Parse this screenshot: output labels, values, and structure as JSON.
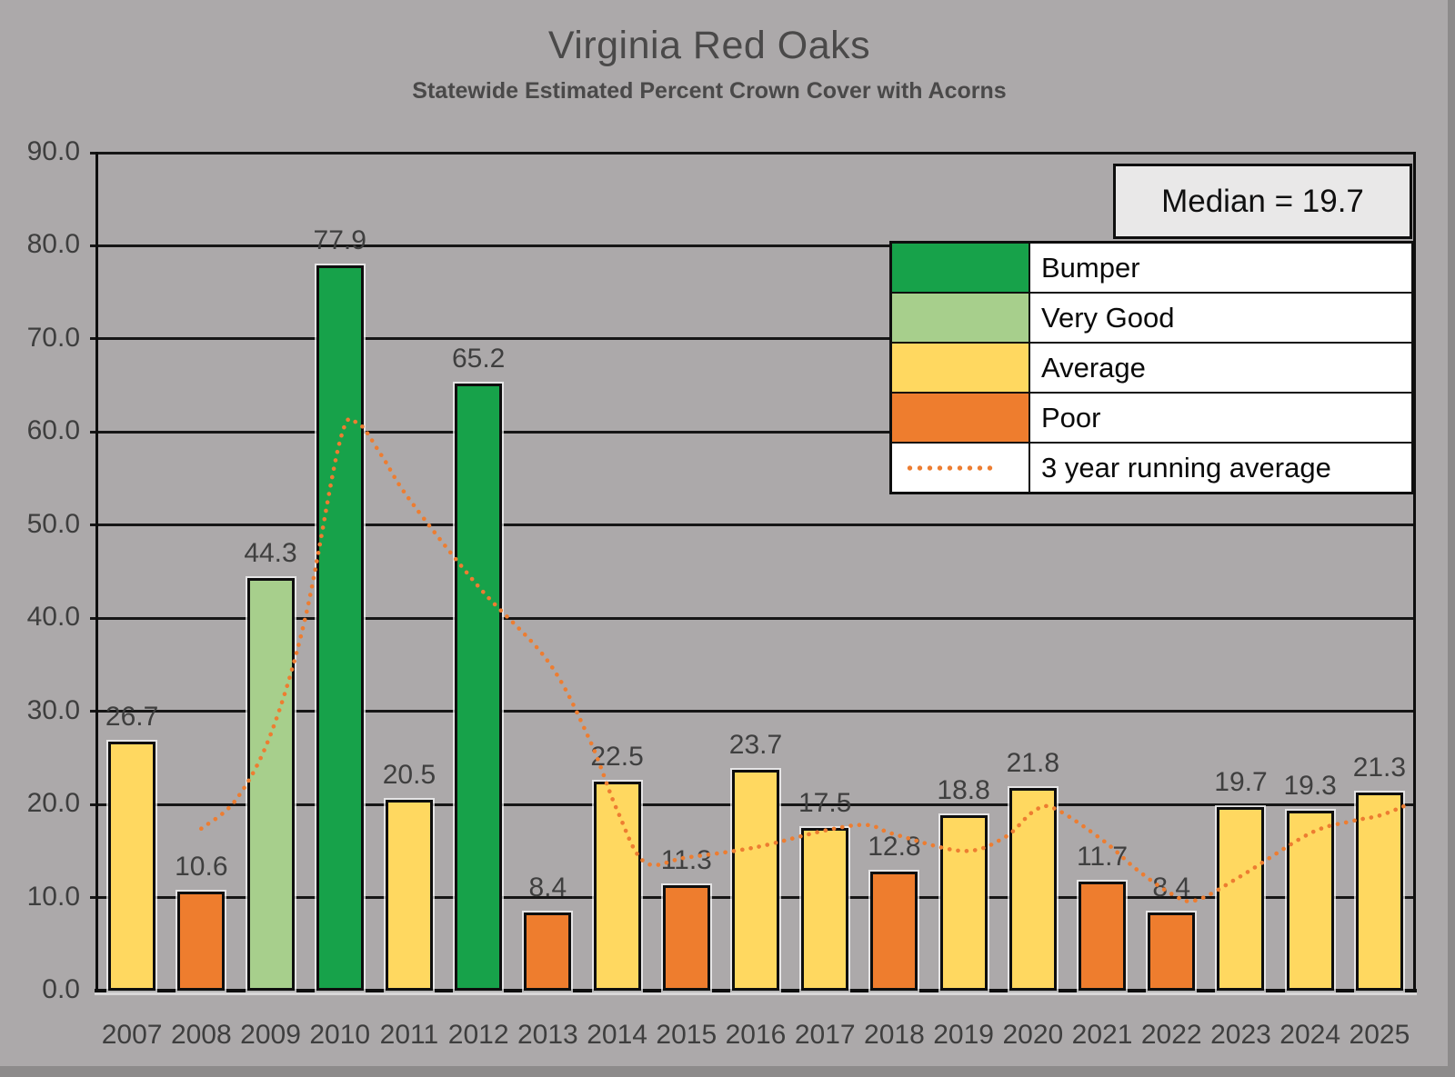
{
  "title": "Virginia Red Oaks",
  "subtitle": "Statewide Estimated Percent Crown Cover with Acorns",
  "median_box": {
    "text": "Median = 19.7"
  },
  "legend": {
    "items": [
      {
        "label": "Bumper",
        "key": "bumper",
        "color": "#17A24A",
        "swatch": "fill"
      },
      {
        "label": "Very Good",
        "key": "very_good",
        "color": "#A7CF8C",
        "swatch": "fill"
      },
      {
        "label": "Average",
        "key": "average",
        "color": "#FFD860",
        "swatch": "fill"
      },
      {
        "label": "Poor",
        "key": "poor",
        "color": "#EE7D2E",
        "swatch": "fill"
      },
      {
        "label": "3 year running average",
        "key": "running_average",
        "color": "#ED7D31",
        "swatch": "dotted-line"
      }
    ]
  },
  "y_axis": {
    "min": 0,
    "max": 90,
    "step": 10,
    "decimals": 1
  },
  "chart_data": {
    "type": "bar",
    "title": "Virginia Red Oaks",
    "subtitle": "Statewide Estimated Percent Crown Cover with Acorns",
    "xlabel": "",
    "ylabel": "",
    "ylim": [
      0,
      90
    ],
    "y_step": 10,
    "grid": true,
    "legend_position": "top-right",
    "median": 19.7,
    "categories": [
      2007,
      2008,
      2009,
      2010,
      2011,
      2012,
      2013,
      2014,
      2015,
      2016,
      2017,
      2018,
      2019,
      2020,
      2021,
      2022,
      2023,
      2024,
      2025
    ],
    "values": [
      26.7,
      10.6,
      44.3,
      77.9,
      20.5,
      65.2,
      8.4,
      22.5,
      11.3,
      23.7,
      17.5,
      12.8,
      18.8,
      21.8,
      11.7,
      8.4,
      19.7,
      19.3,
      21.3
    ],
    "ratings": [
      "Average",
      "Poor",
      "Very Good",
      "Bumper",
      "Average",
      "Bumper",
      "Poor",
      "Average",
      "Poor",
      "Average",
      "Average",
      "Poor",
      "Average",
      "Average",
      "Poor",
      "Poor",
      "Average",
      "Average",
      "Average"
    ],
    "rating_colors": {
      "Bumper": "#17A24A",
      "Very Good": "#A7CF8C",
      "Average": "#FFD860",
      "Poor": "#EE7D2E"
    },
    "running_average_3yr": {
      "name": "3 year running average",
      "color": "#ED7D31",
      "style": "dotted",
      "points": [
        [
          2008,
          17.4
        ],
        [
          2008.5,
          20.5
        ],
        [
          2009,
          27.5
        ],
        [
          2009.5,
          40.0
        ],
        [
          2010,
          59.0
        ],
        [
          2010.25,
          61.0
        ],
        [
          2010.6,
          57.5
        ],
        [
          2011,
          52.8
        ],
        [
          2012,
          43.4
        ],
        [
          2013,
          35.4
        ],
        [
          2013.6,
          27.0
        ],
        [
          2014,
          19.4
        ],
        [
          2014.4,
          13.8
        ],
        [
          2015,
          14.3
        ],
        [
          2016,
          15.4
        ],
        [
          2017,
          17.2
        ],
        [
          2017.6,
          17.8
        ],
        [
          2018,
          16.8
        ],
        [
          2019,
          15.0
        ],
        [
          2019.6,
          16.5
        ],
        [
          2020,
          19.2
        ],
        [
          2020.3,
          19.6
        ],
        [
          2021,
          16.2
        ],
        [
          2021.5,
          13.0
        ],
        [
          2022,
          10.4
        ],
        [
          2022.35,
          9.7
        ],
        [
          2023,
          12.3
        ],
        [
          2024,
          16.9
        ],
        [
          2024.6,
          18.2
        ],
        [
          2025,
          18.8
        ],
        [
          2025.35,
          19.8
        ]
      ]
    }
  },
  "colors": {
    "background": "#ACA9AA",
    "edge_shade": "#8D8B8B",
    "grid": "#161616",
    "text": "#3F3F3F",
    "legend_bg": "#FFFFFF",
    "median_bg": "#E9E8E8"
  }
}
